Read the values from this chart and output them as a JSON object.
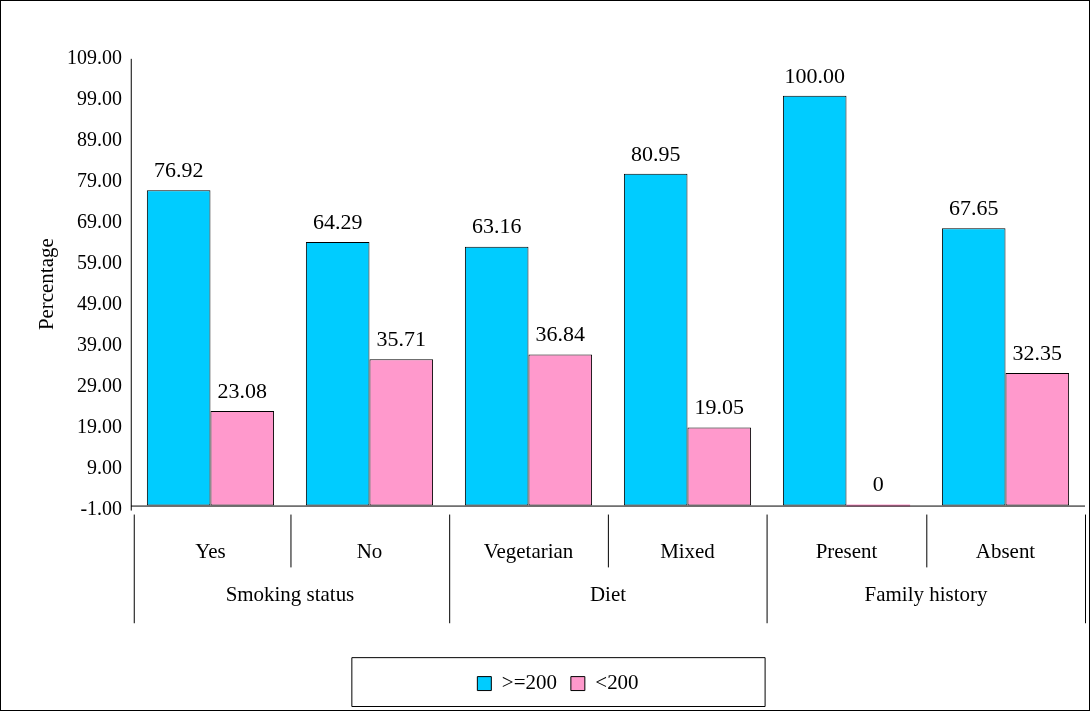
{
  "chart_data": {
    "type": "bar",
    "ylabel": "Percentage",
    "categories": [
      "Yes",
      "No",
      "Vegetarian",
      "Mixed",
      "Present",
      "Absent"
    ],
    "series": [
      {
        "name": ">=200",
        "color": "#00ccff",
        "values": [
          76.92,
          64.29,
          63.16,
          80.95,
          100,
          67.65
        ],
        "value_labels": [
          "76.92",
          "64.29",
          "63.16",
          "80.95",
          "100.00",
          "67.65"
        ]
      },
      {
        "name": "<200",
        "color": "#ff99cc",
        "values": [
          23.08,
          35.71,
          36.84,
          19.05,
          0,
          32.35
        ],
        "value_labels": [
          "23.08",
          "35.71",
          "36.84",
          "19.05",
          "0",
          "32.35"
        ]
      }
    ],
    "annotations": [
      "Smoking status",
      "Diet",
      "Family history"
    ],
    "ylim": [
      -1,
      109
    ],
    "yticks": [
      {
        "value": -1,
        "label": "-1.00"
      },
      {
        "value": 9,
        "label": "9.00"
      },
      {
        "value": 19,
        "label": "19.00"
      },
      {
        "value": 29,
        "label": "29.00"
      },
      {
        "value": 39,
        "label": "39.00"
      },
      {
        "value": 49,
        "label": "49.00"
      },
      {
        "value": 59,
        "label": "59.00"
      },
      {
        "value": 69,
        "label": "69.00"
      },
      {
        "value": 79,
        "label": "79.00"
      },
      {
        "value": 89,
        "label": "89.00"
      },
      {
        "value": 99,
        "label": "99.00"
      },
      {
        "value": 109,
        "label": "109.00"
      }
    ],
    "grid": false,
    "legend": "bottom"
  }
}
